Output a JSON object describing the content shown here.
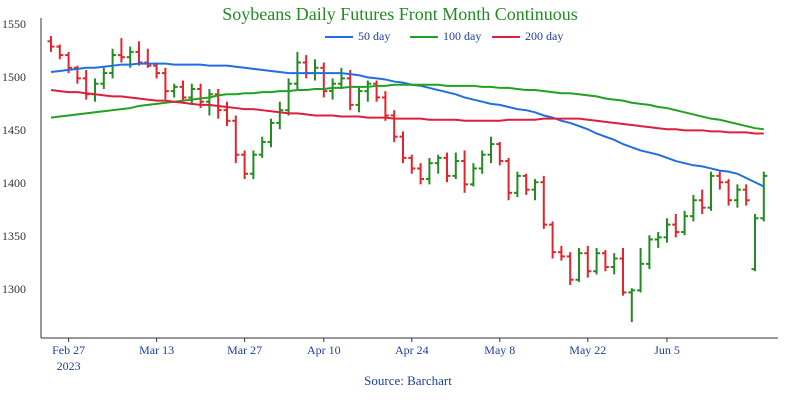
{
  "chart_data": {
    "type": "ohlc",
    "title": "Soybeans Daily Futures Front Month Continuous",
    "source": "Source: Barchart",
    "x": [
      "2023-02-23",
      "2023-02-24",
      "2023-02-27",
      "2023-02-28",
      "2023-03-01",
      "2023-03-02",
      "2023-03-03",
      "2023-03-06",
      "2023-03-07",
      "2023-03-08",
      "2023-03-09",
      "2023-03-10",
      "2023-03-13",
      "2023-03-14",
      "2023-03-15",
      "2023-03-16",
      "2023-03-17",
      "2023-03-20",
      "2023-03-21",
      "2023-03-22",
      "2023-03-23",
      "2023-03-24",
      "2023-03-27",
      "2023-03-28",
      "2023-03-29",
      "2023-03-30",
      "2023-03-31",
      "2023-04-03",
      "2023-04-04",
      "2023-04-05",
      "2023-04-06",
      "2023-04-10",
      "2023-04-11",
      "2023-04-12",
      "2023-04-13",
      "2023-04-14",
      "2023-04-17",
      "2023-04-18",
      "2023-04-19",
      "2023-04-20",
      "2023-04-21",
      "2023-04-24",
      "2023-04-25",
      "2023-04-26",
      "2023-04-27",
      "2023-04-28",
      "2023-05-01",
      "2023-05-02",
      "2023-05-03",
      "2023-05-04",
      "2023-05-05",
      "2023-05-08",
      "2023-05-09",
      "2023-05-10",
      "2023-05-11",
      "2023-05-12",
      "2023-05-15",
      "2023-05-16",
      "2023-05-17",
      "2023-05-18",
      "2023-05-19",
      "2023-05-22",
      "2023-05-23",
      "2023-05-24",
      "2023-05-25",
      "2023-05-26",
      "2023-05-30",
      "2023-05-31",
      "2023-06-01",
      "2023-06-02",
      "2023-06-05",
      "2023-06-06",
      "2023-06-07",
      "2023-06-08",
      "2023-06-09",
      "2023-06-12",
      "2023-06-13",
      "2023-06-14",
      "2023-06-15",
      "2023-06-16",
      "2023-06-20",
      "2023-06-21"
    ],
    "open": [
      1535,
      1530,
      1522,
      1510,
      1500,
      1485,
      1495,
      1505,
      1522,
      1520,
      1525,
      1515,
      1512,
      1505,
      1488,
      1492,
      1482,
      1490,
      1478,
      1485,
      1470,
      1460,
      1428,
      1410,
      1428,
      1440,
      1458,
      1470,
      1495,
      1515,
      1505,
      1510,
      1488,
      1495,
      1500,
      1475,
      1488,
      1495,
      1482,
      1465,
      1445,
      1425,
      1415,
      1405,
      1420,
      1425,
      1408,
      1422,
      1400,
      1415,
      1428,
      1438,
      1422,
      1392,
      1408,
      1395,
      1402,
      1362,
      1336,
      1332,
      1310,
      1335,
      1318,
      1335,
      1322,
      1330,
      1298,
      1300,
      1325,
      1348,
      1350,
      1362,
      1355,
      1370,
      1385,
      1378,
      1408,
      1402,
      1385,
      1395,
      1320,
      1368
    ],
    "high": [
      1540,
      1532,
      1525,
      1512,
      1508,
      1500,
      1510,
      1528,
      1538,
      1530,
      1535,
      1528,
      1515,
      1510,
      1495,
      1498,
      1495,
      1495,
      1490,
      1490,
      1478,
      1465,
      1432,
      1432,
      1445,
      1462,
      1478,
      1500,
      1525,
      1522,
      1518,
      1515,
      1500,
      1510,
      1508,
      1492,
      1498,
      1498,
      1488,
      1470,
      1450,
      1428,
      1420,
      1425,
      1428,
      1430,
      1430,
      1432,
      1420,
      1432,
      1445,
      1440,
      1425,
      1412,
      1410,
      1405,
      1408,
      1365,
      1342,
      1336,
      1340,
      1342,
      1340,
      1338,
      1335,
      1340,
      1302,
      1340,
      1352,
      1355,
      1368,
      1372,
      1375,
      1390,
      1395,
      1412,
      1412,
      1405,
      1400,
      1400,
      1372,
      1412
    ],
    "low": [
      1525,
      1518,
      1505,
      1495,
      1480,
      1478,
      1490,
      1500,
      1515,
      1510,
      1512,
      1510,
      1500,
      1480,
      1482,
      1478,
      1475,
      1472,
      1465,
      1462,
      1455,
      1420,
      1405,
      1405,
      1425,
      1435,
      1452,
      1465,
      1490,
      1500,
      1498,
      1482,
      1480,
      1490,
      1470,
      1468,
      1478,
      1478,
      1460,
      1440,
      1420,
      1410,
      1400,
      1400,
      1410,
      1402,
      1405,
      1392,
      1398,
      1410,
      1420,
      1418,
      1385,
      1388,
      1390,
      1385,
      1358,
      1330,
      1328,
      1305,
      1308,
      1312,
      1315,
      1318,
      1315,
      1295,
      1270,
      1298,
      1320,
      1340,
      1345,
      1350,
      1352,
      1365,
      1372,
      1375,
      1395,
      1380,
      1378,
      1380,
      1318,
      1365
    ],
    "close": [
      1530,
      1522,
      1510,
      1500,
      1485,
      1495,
      1505,
      1522,
      1520,
      1525,
      1515,
      1512,
      1505,
      1488,
      1492,
      1482,
      1490,
      1478,
      1485,
      1470,
      1460,
      1428,
      1410,
      1428,
      1440,
      1458,
      1470,
      1495,
      1515,
      1505,
      1510,
      1488,
      1495,
      1500,
      1475,
      1488,
      1495,
      1482,
      1465,
      1445,
      1425,
      1415,
      1405,
      1420,
      1425,
      1408,
      1422,
      1400,
      1415,
      1428,
      1438,
      1422,
      1392,
      1408,
      1395,
      1402,
      1362,
      1336,
      1332,
      1310,
      1335,
      1318,
      1335,
      1322,
      1330,
      1298,
      1300,
      1325,
      1348,
      1350,
      1362,
      1355,
      1370,
      1385,
      1378,
      1408,
      1402,
      1385,
      1395,
      1385,
      1368,
      1408
    ],
    "increasing_color": "#228b22",
    "decreasing_color": "#e0262c",
    "series": [
      {
        "name": "50 day",
        "color": "#1f6fe0",
        "values": [
          1506,
          1507,
          1508,
          1509,
          1510,
          1510,
          1511,
          1512,
          1513,
          1513,
          1514,
          1514,
          1514,
          1514,
          1513,
          1513,
          1513,
          1513,
          1512,
          1512,
          1512,
          1511,
          1510,
          1509,
          1508,
          1507,
          1506,
          1505,
          1505,
          1505,
          1505,
          1505,
          1505,
          1505,
          1504,
          1503,
          1501,
          1500,
          1499,
          1497,
          1496,
          1494,
          1493,
          1491,
          1489,
          1487,
          1485,
          1482,
          1480,
          1478,
          1476,
          1475,
          1473,
          1471,
          1470,
          1468,
          1465,
          1463,
          1460,
          1458,
          1455,
          1452,
          1448,
          1445,
          1442,
          1438,
          1435,
          1432,
          1430,
          1428,
          1425,
          1422,
          1420,
          1418,
          1417,
          1415,
          1413,
          1412,
          1410,
          1406,
          1402,
          1398
        ]
      },
      {
        "name": "100 day",
        "color": "#22a022",
        "values": [
          1463,
          1464,
          1465,
          1466,
          1467,
          1468,
          1469,
          1470,
          1471,
          1472,
          1474,
          1475,
          1476,
          1477,
          1478,
          1479,
          1480,
          1481,
          1482,
          1484,
          1485,
          1485,
          1486,
          1486,
          1487,
          1487,
          1488,
          1488,
          1489,
          1489,
          1490,
          1490,
          1491,
          1491,
          1492,
          1492,
          1492,
          1493,
          1493,
          1494,
          1494,
          1494,
          1494,
          1494,
          1494,
          1493,
          1493,
          1493,
          1493,
          1492,
          1492,
          1491,
          1491,
          1490,
          1489,
          1489,
          1488,
          1487,
          1486,
          1486,
          1485,
          1484,
          1483,
          1481,
          1480,
          1479,
          1477,
          1476,
          1475,
          1473,
          1472,
          1470,
          1468,
          1466,
          1464,
          1462,
          1461,
          1459,
          1457,
          1455,
          1453,
          1452
        ]
      },
      {
        "name": "200 day",
        "color": "#dc1f3c",
        "values": [
          1489,
          1488,
          1487,
          1487,
          1486,
          1485,
          1484,
          1483,
          1483,
          1482,
          1481,
          1480,
          1479,
          1479,
          1478,
          1477,
          1476,
          1475,
          1475,
          1474,
          1473,
          1472,
          1471,
          1471,
          1470,
          1469,
          1468,
          1467,
          1467,
          1466,
          1465,
          1465,
          1465,
          1464,
          1464,
          1464,
          1463,
          1463,
          1463,
          1462,
          1462,
          1462,
          1462,
          1461,
          1461,
          1461,
          1461,
          1460,
          1460,
          1460,
          1460,
          1460,
          1461,
          1461,
          1461,
          1461,
          1462,
          1462,
          1462,
          1462,
          1462,
          1461,
          1460,
          1459,
          1458,
          1457,
          1456,
          1455,
          1454,
          1453,
          1452,
          1452,
          1451,
          1451,
          1451,
          1450,
          1450,
          1449,
          1449,
          1449,
          1448,
          1448
        ]
      }
    ],
    "ylim": [
      1255,
      1557
    ],
    "yticks": [
      1300,
      1350,
      1400,
      1450,
      1500,
      1550
    ],
    "xticks": [
      {
        "value": "2023-02-27",
        "label": "Feb 27",
        "year": "2023"
      },
      {
        "value": "2023-03-13",
        "label": "Mar 13"
      },
      {
        "value": "2023-03-27",
        "label": "Mar 27"
      },
      {
        "value": "2023-04-10",
        "label": "Apr 10"
      },
      {
        "value": "2023-04-24",
        "label": "Apr 24"
      },
      {
        "value": "2023-05-08",
        "label": "May 8"
      },
      {
        "value": "2023-05-22",
        "label": "May 22"
      },
      {
        "value": "2023-06-05",
        "label": "Jun 5"
      }
    ],
    "grid": false
  }
}
